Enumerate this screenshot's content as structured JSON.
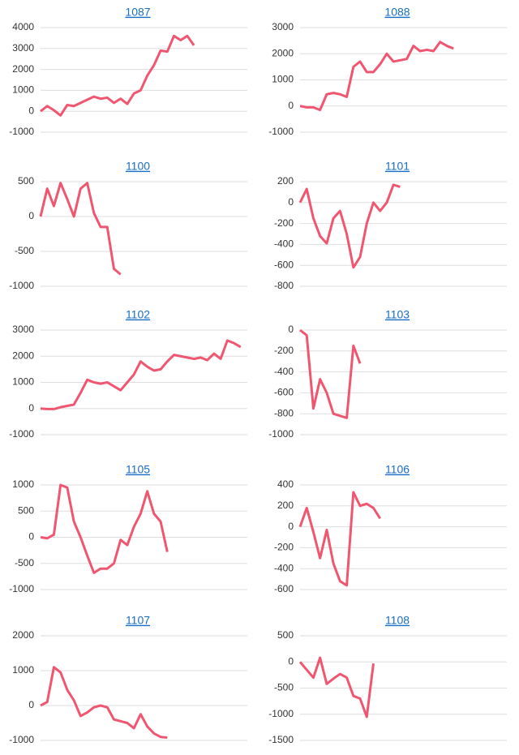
{
  "chart_data": [
    {
      "type": "line",
      "title": "1087",
      "color": "#f0566f",
      "grid": true,
      "xlim": [
        0,
        31
      ],
      "ylim": [
        -1000,
        4000
      ],
      "yticks": [
        4000,
        3000,
        2000,
        1000,
        0,
        -1000
      ],
      "values": [
        0,
        250,
        50,
        -200,
        300,
        250,
        400,
        550,
        700,
        600,
        650,
        400,
        600,
        350,
        850,
        1000,
        1700,
        2200,
        2900,
        2850,
        3600,
        3400,
        3600,
        3150
      ]
    },
    {
      "type": "line",
      "title": "1088",
      "color": "#f0566f",
      "grid": true,
      "xlim": [
        0,
        31
      ],
      "ylim": [
        -1000,
        3000
      ],
      "yticks": [
        3000,
        2000,
        1000,
        0,
        -1000
      ],
      "values": [
        0,
        -50,
        -50,
        -150,
        450,
        500,
        450,
        350,
        1500,
        1700,
        1300,
        1300,
        1600,
        2000,
        1700,
        1750,
        1800,
        2300,
        2100,
        2150,
        2100,
        2450,
        2300,
        2200
      ]
    },
    {
      "type": "line",
      "title": "1100",
      "color": "#f0566f",
      "grid": true,
      "xlim": [
        0,
        31
      ],
      "ylim": [
        -1000,
        500
      ],
      "yticks": [
        500,
        0,
        -500,
        -1000
      ],
      "values": [
        0,
        400,
        150,
        480,
        250,
        0,
        400,
        480,
        50,
        -150,
        -150,
        -750,
        -830
      ]
    },
    {
      "type": "line",
      "title": "1101",
      "color": "#f0566f",
      "grid": true,
      "xlim": [
        0,
        31
      ],
      "ylim": [
        -800,
        200
      ],
      "yticks": [
        200,
        0,
        -200,
        -400,
        -600,
        -800
      ],
      "values": [
        0,
        130,
        -150,
        -320,
        -390,
        -150,
        -80,
        -300,
        -620,
        -520,
        -200,
        0,
        -80,
        0,
        170,
        150
      ]
    },
    {
      "type": "line",
      "title": "1102",
      "color": "#f0566f",
      "grid": true,
      "xlim": [
        0,
        31
      ],
      "ylim": [
        -1000,
        3000
      ],
      "yticks": [
        3000,
        2000,
        1000,
        0,
        -1000
      ],
      "values": [
        0,
        -20,
        -20,
        50,
        100,
        150,
        600,
        1100,
        1000,
        950,
        1000,
        850,
        700,
        1000,
        1300,
        1800,
        1600,
        1450,
        1500,
        1800,
        2050,
        2000,
        1950,
        1900,
        1950,
        1850,
        2100,
        1900,
        2600,
        2500,
        2350
      ]
    },
    {
      "type": "line",
      "title": "1103",
      "color": "#f0566f",
      "grid": true,
      "xlim": [
        0,
        31
      ],
      "ylim": [
        -1000,
        0
      ],
      "yticks": [
        0,
        -200,
        -400,
        -600,
        -800,
        -1000
      ],
      "values": [
        0,
        -50,
        -750,
        -470,
        -600,
        -800,
        -820,
        -840,
        -150,
        -320
      ]
    },
    {
      "type": "line",
      "title": "1105",
      "color": "#f0566f",
      "grid": true,
      "xlim": [
        0,
        31
      ],
      "ylim": [
        -1000,
        1000
      ],
      "yticks": [
        1000,
        500,
        0,
        -500,
        -1000
      ],
      "values": [
        0,
        -20,
        50,
        1000,
        950,
        300,
        0,
        -350,
        -680,
        -600,
        -600,
        -500,
        -50,
        -150,
        200,
        450,
        880,
        450,
        300,
        -280
      ]
    },
    {
      "type": "line",
      "title": "1106",
      "color": "#f0566f",
      "grid": true,
      "xlim": [
        0,
        31
      ],
      "ylim": [
        -600,
        400
      ],
      "yticks": [
        400,
        200,
        0,
        -200,
        -400,
        -600
      ],
      "values": [
        0,
        180,
        -50,
        -300,
        -30,
        -350,
        -520,
        -560,
        330,
        200,
        220,
        180,
        80
      ]
    },
    {
      "type": "line",
      "title": "1107",
      "color": "#f0566f",
      "grid": true,
      "xlim": [
        0,
        31
      ],
      "ylim": [
        -1000,
        2000
      ],
      "yticks": [
        2000,
        1000,
        0,
        -1000
      ],
      "values": [
        0,
        100,
        1100,
        950,
        450,
        150,
        -300,
        -200,
        -50,
        0,
        -50,
        -400,
        -450,
        -500,
        -650,
        -250,
        -600,
        -800,
        -900,
        -920
      ]
    },
    {
      "type": "line",
      "title": "1108",
      "color": "#f0566f",
      "grid": true,
      "xlim": [
        0,
        31
      ],
      "ylim": [
        -1500,
        500
      ],
      "yticks": [
        500,
        0,
        -500,
        -1000,
        -1500
      ],
      "values": [
        0,
        -150,
        -300,
        80,
        -420,
        -320,
        -230,
        -300,
        -650,
        -700,
        -1050,
        -30
      ]
    }
  ]
}
